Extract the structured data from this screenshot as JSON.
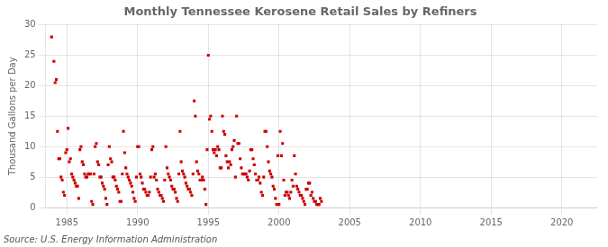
{
  "chart_data": {
    "type": "scatter",
    "title": "Monthly Tennessee Kerosene Retail Sales by Refiners",
    "ylabel": "Thousand Gallons per Day",
    "annotations": [
      "Source: U.S. Energy Information Administration"
    ],
    "color": "#cc0000",
    "marker": "square",
    "grid": true,
    "xlim": [
      1983.5,
      2022.5
    ],
    "ylim": [
      0,
      30
    ],
    "xticks": [
      1985,
      1990,
      1995,
      2000,
      2005,
      2010,
      2015,
      2020
    ],
    "yticks": [
      0,
      5,
      10,
      15,
      20,
      25,
      30
    ],
    "x": [
      1983.917,
      1984.083,
      1984.167,
      1984.25,
      1984.333,
      1984.417,
      1984.5,
      1984.583,
      1984.667,
      1984.75,
      1984.833,
      1984.917,
      1985.0,
      1985.083,
      1985.167,
      1985.25,
      1985.333,
      1985.417,
      1985.5,
      1985.583,
      1985.667,
      1985.75,
      1985.833,
      1985.917,
      1986.0,
      1986.083,
      1986.167,
      1986.25,
      1986.333,
      1986.417,
      1986.5,
      1986.583,
      1986.667,
      1986.75,
      1986.833,
      1986.917,
      1987.0,
      1987.083,
      1987.167,
      1987.25,
      1987.333,
      1987.417,
      1987.5,
      1987.583,
      1987.667,
      1987.75,
      1987.833,
      1987.917,
      1988.0,
      1988.083,
      1988.167,
      1988.25,
      1988.333,
      1988.417,
      1988.5,
      1988.583,
      1988.667,
      1988.75,
      1988.833,
      1988.917,
      1989.0,
      1989.083,
      1989.167,
      1989.25,
      1989.333,
      1989.417,
      1989.5,
      1989.583,
      1989.667,
      1989.75,
      1989.833,
      1989.917,
      1990.0,
      1990.083,
      1990.167,
      1990.25,
      1990.333,
      1990.417,
      1990.5,
      1990.583,
      1990.667,
      1990.75,
      1990.833,
      1990.917,
      1991.0,
      1991.083,
      1991.167,
      1991.25,
      1991.333,
      1991.417,
      1991.5,
      1991.583,
      1991.667,
      1991.75,
      1991.833,
      1991.917,
      1992.0,
      1992.083,
      1992.167,
      1992.25,
      1992.333,
      1992.417,
      1992.5,
      1992.583,
      1992.667,
      1992.75,
      1992.833,
      1992.917,
      1993.0,
      1993.083,
      1993.167,
      1993.25,
      1993.333,
      1993.417,
      1993.5,
      1993.583,
      1993.667,
      1993.75,
      1993.833,
      1993.917,
      1994.0,
      1994.083,
      1994.167,
      1994.25,
      1994.333,
      1994.417,
      1994.5,
      1994.583,
      1994.667,
      1994.75,
      1994.833,
      1994.917,
      1995.0,
      1995.083,
      1995.167,
      1995.25,
      1995.333,
      1995.417,
      1995.5,
      1995.583,
      1995.667,
      1995.75,
      1995.833,
      1995.917,
      1996.0,
      1996.083,
      1996.167,
      1996.25,
      1996.333,
      1996.417,
      1996.5,
      1996.583,
      1996.667,
      1996.75,
      1996.833,
      1996.917,
      1997.0,
      1997.083,
      1997.167,
      1997.25,
      1997.333,
      1997.417,
      1997.5,
      1997.583,
      1997.667,
      1997.75,
      1997.833,
      1997.917,
      1998.0,
      1998.083,
      1998.167,
      1998.25,
      1998.333,
      1998.417,
      1998.5,
      1998.583,
      1998.667,
      1998.75,
      1998.833,
      1998.917,
      1999.0,
      1999.083,
      1999.167,
      1999.25,
      1999.333,
      1999.417,
      1999.5,
      1999.583,
      1999.667,
      1999.75,
      1999.833,
      1999.917,
      2000.0,
      2000.083,
      2000.167,
      2000.25,
      2000.333,
      2000.417,
      2000.5,
      2000.583,
      2000.667,
      2000.75,
      2000.833,
      2000.917,
      2001.0,
      2001.083,
      2001.167,
      2001.25,
      2001.333,
      2001.417,
      2001.5,
      2001.583,
      2001.667,
      2001.75,
      2001.833,
      2001.917,
      2002.0,
      2002.083,
      2002.167,
      2002.25,
      2002.333,
      2002.417,
      2002.5,
      2002.583,
      2002.667,
      2002.75,
      2002.833,
      2002.917,
      2003.0
    ],
    "values": [
      28.0,
      24.0,
      20.5,
      21.0,
      12.5,
      8.0,
      8.0,
      5.0,
      4.5,
      2.5,
      2.0,
      9.0,
      9.5,
      13.0,
      7.5,
      8.0,
      5.5,
      5.0,
      4.5,
      4.0,
      3.5,
      3.5,
      1.5,
      9.5,
      10.0,
      7.5,
      7.0,
      5.5,
      5.0,
      5.0,
      5.5,
      5.5,
      5.5,
      1.0,
      0.5,
      5.5,
      10.0,
      10.5,
      7.5,
      7.0,
      5.0,
      5.0,
      4.0,
      3.5,
      3.0,
      1.5,
      0.5,
      7.0,
      10.0,
      8.0,
      7.5,
      5.0,
      5.0,
      4.5,
      3.5,
      3.0,
      2.5,
      1.0,
      1.0,
      5.5,
      12.5,
      9.0,
      6.5,
      5.5,
      5.0,
      4.5,
      4.0,
      3.5,
      2.5,
      1.5,
      1.0,
      5.0,
      10.0,
      10.0,
      5.5,
      5.0,
      4.0,
      3.0,
      3.0,
      2.5,
      2.0,
      2.0,
      2.5,
      5.0,
      9.5,
      10.0,
      5.0,
      5.5,
      4.5,
      3.0,
      2.5,
      2.0,
      2.0,
      1.5,
      1.0,
      4.5,
      10.0,
      6.5,
      5.5,
      5.0,
      4.5,
      3.5,
      3.0,
      3.0,
      2.5,
      1.5,
      1.0,
      5.5,
      12.5,
      7.5,
      6.0,
      5.5,
      5.0,
      4.0,
      3.5,
      3.0,
      3.0,
      2.5,
      2.0,
      5.5,
      17.5,
      15.0,
      7.5,
      6.0,
      5.5,
      4.5,
      4.5,
      5.0,
      4.5,
      3.0,
      0.5,
      9.5,
      25.0,
      14.5,
      15.0,
      12.5,
      9.5,
      9.0,
      9.5,
      8.5,
      10.0,
      9.5,
      6.5,
      6.5,
      15.0,
      12.5,
      12.0,
      8.5,
      7.5,
      6.5,
      7.5,
      7.0,
      9.5,
      10.0,
      11.0,
      5.0,
      15.0,
      10.5,
      10.5,
      8.0,
      6.5,
      5.5,
      5.5,
      5.5,
      5.5,
      5.0,
      4.5,
      6.0,
      9.5,
      9.5,
      8.0,
      7.0,
      5.5,
      4.5,
      4.5,
      5.0,
      4.0,
      2.5,
      2.0,
      5.0,
      12.5,
      12.5,
      10.0,
      7.5,
      6.0,
      5.5,
      5.0,
      3.5,
      3.0,
      1.5,
      0.5,
      8.5,
      0.5,
      12.5,
      8.5,
      10.5,
      4.5,
      2.0,
      2.5,
      2.5,
      2.0,
      1.5,
      2.5,
      4.5,
      3.5,
      8.5,
      5.5,
      3.5,
      3.0,
      2.5,
      2.0,
      2.0,
      1.5,
      1.0,
      0.5,
      3.0,
      3.0,
      4.0,
      4.0,
      2.0,
      2.5,
      1.5,
      1.0,
      1.0,
      0.5,
      0.5,
      0.5,
      1.5,
      1.0
    ]
  }
}
